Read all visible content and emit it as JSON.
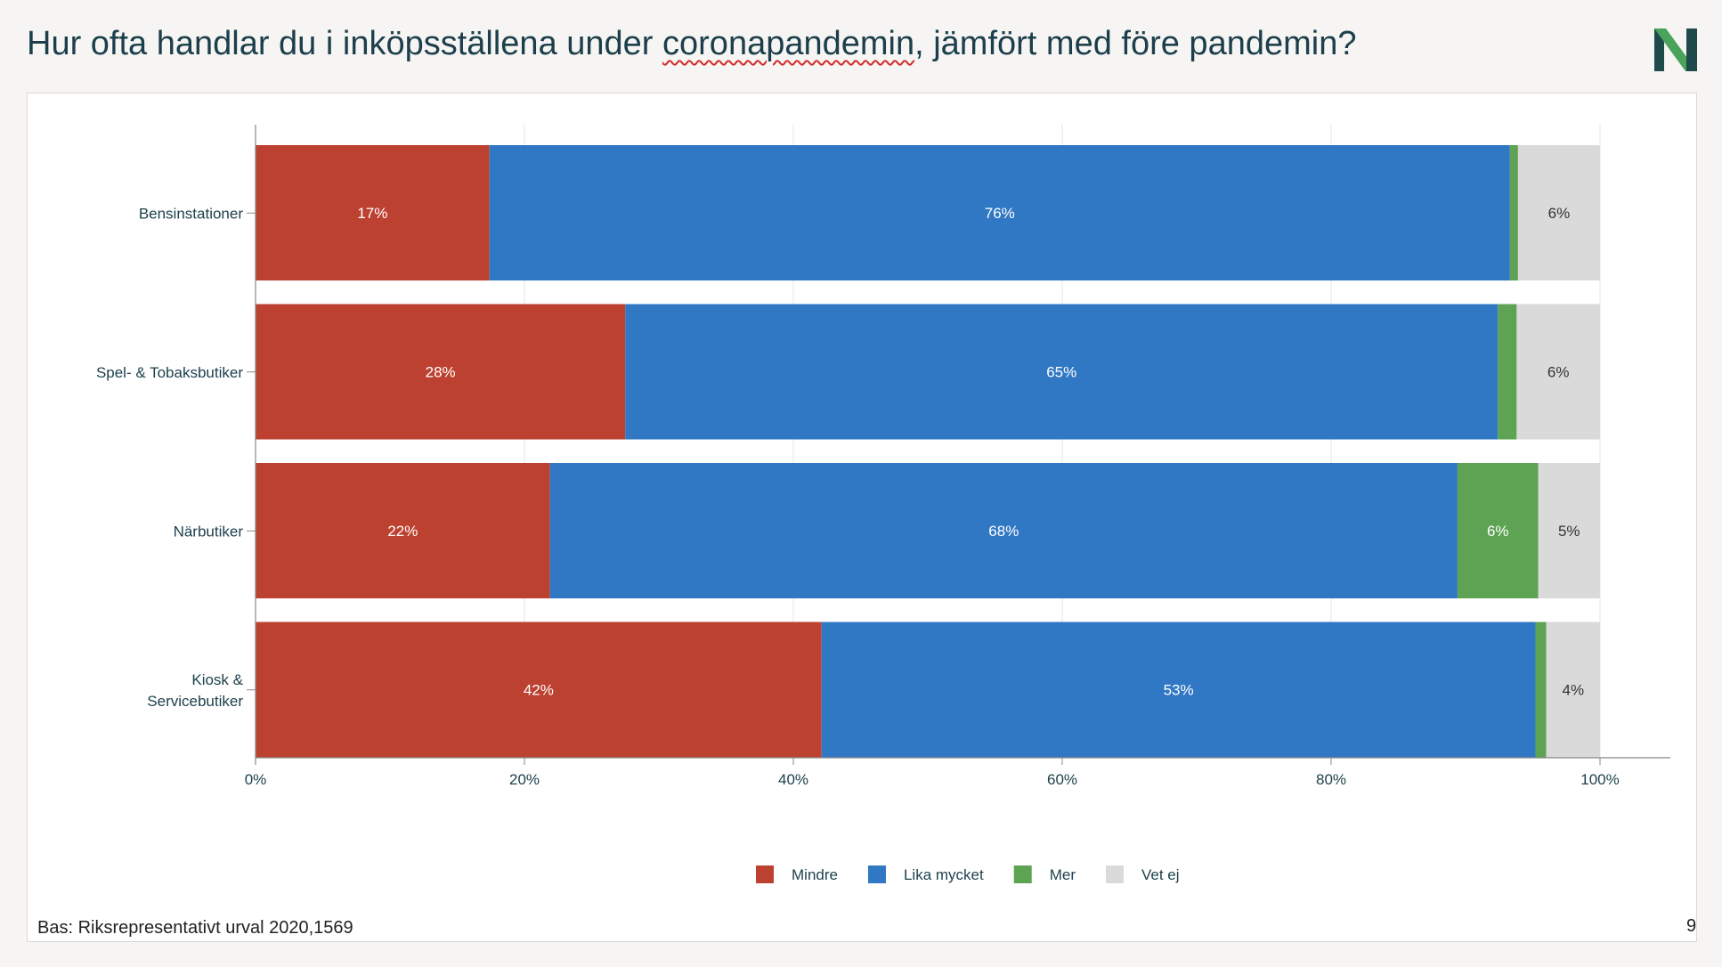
{
  "slide": {
    "title_parts": {
      "before": "Hur ofta handlar du i inköpsställena under ",
      "flagged": "coronapandemin",
      "after": ", jämfört med före pandemin?"
    },
    "footnote": "Bas: Riksrepresentativt urval 2020,1569",
    "page_number": "9",
    "logo_letter": "N"
  },
  "colors": {
    "title": "#1c3f4b",
    "logo_dark": "#1f4a4c",
    "logo_green": "#4aa35a"
  },
  "chart_data": {
    "type": "bar",
    "orientation": "horizontal",
    "stacked": true,
    "categories": [
      "Bensinstationer",
      "Spel- & Tobaksbutiker",
      "Närbutiker",
      "Kiosk & Servicebutiker"
    ],
    "category_lines": [
      [
        "Bensinstationer"
      ],
      [
        "Spel- & Tobaksbutiker"
      ],
      [
        "Närbutiker"
      ],
      [
        "Kiosk &",
        "Servicebutiker"
      ]
    ],
    "series": [
      {
        "name": "Mindre",
        "color": "#bd4130",
        "label_color": "#ffffff",
        "values": [
          17.4,
          27.5,
          21.9,
          42.1
        ],
        "labels": [
          "17%",
          "28%",
          "22%",
          "42%"
        ]
      },
      {
        "name": "Lika mycket",
        "color": "#3178c4",
        "label_color": "#ffffff",
        "values": [
          75.9,
          64.9,
          67.5,
          53.1
        ],
        "labels": [
          "76%",
          "65%",
          "68%",
          "53%"
        ]
      },
      {
        "name": "Mer",
        "color": "#5ea354",
        "label_color": "#ffffff",
        "values": [
          0.6,
          1.4,
          6.0,
          0.8
        ],
        "labels": [
          "",
          "",
          "6%",
          ""
        ]
      },
      {
        "name": "Vet ej",
        "color": "#dadada",
        "label_color": "#333333",
        "values": [
          6.1,
          6.2,
          4.6,
          4.0
        ],
        "labels": [
          "6%",
          "6%",
          "5%",
          "4%"
        ]
      }
    ],
    "xlim": [
      0,
      100
    ],
    "x_ticks": [
      0,
      20,
      40,
      60,
      80,
      100
    ],
    "x_tick_labels": [
      "0%",
      "20%",
      "40%",
      "60%",
      "80%",
      "100%"
    ],
    "grid": "vertical",
    "legend": "bottom-center"
  }
}
